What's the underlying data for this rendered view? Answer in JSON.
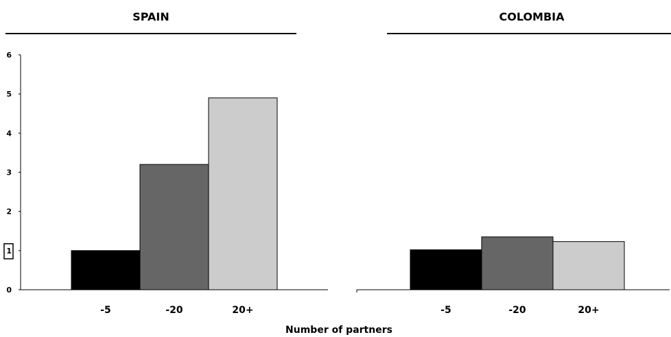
{
  "chart_data": [
    {
      "type": "bar",
      "title": "SPAIN",
      "categories": [
        "-5",
        "-20",
        "20+"
      ],
      "values": [
        1.0,
        3.2,
        4.9
      ],
      "colors": [
        "#000000",
        "#666666",
        "#cccccc"
      ],
      "ylim": [
        0,
        6
      ],
      "yticks": [
        "0",
        "1",
        "2",
        "3",
        "4",
        "5",
        "6"
      ],
      "reference_tick": "1"
    },
    {
      "type": "bar",
      "title": "COLOMBIA",
      "categories": [
        "-5",
        "-20",
        "20+"
      ],
      "values": [
        1.02,
        1.35,
        1.23
      ],
      "colors": [
        "#000000",
        "#666666",
        "#cccccc"
      ],
      "ylim": [
        0,
        6
      ]
    }
  ],
  "xlabel": "Number of partners"
}
